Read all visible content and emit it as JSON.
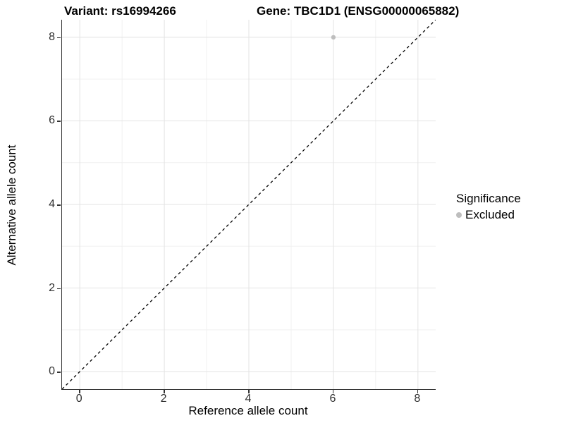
{
  "titles": {
    "variant": "Variant: rs16994266",
    "gene": "Gene: TBC1D1 (ENSG00000065882)"
  },
  "chart_data": {
    "type": "scatter",
    "title": "Variant: rs16994266   Gene: TBC1D1 (ENSG00000065882)",
    "xlabel": "Reference allele count",
    "ylabel": "Alternative allele count",
    "xlim": [
      -0.42,
      8.42
    ],
    "ylim": [
      -0.42,
      8.42
    ],
    "x_ticks": [
      0,
      2,
      4,
      6,
      8
    ],
    "y_ticks": [
      0,
      2,
      4,
      6,
      8
    ],
    "minor_ticks": [
      1,
      3,
      5,
      7
    ],
    "grid": true,
    "points": [
      {
        "x": 6,
        "y": 8,
        "series": "Excluded"
      }
    ],
    "reference_line": {
      "kind": "identity-y-equals-x",
      "style": "dashed",
      "color": "#000000"
    },
    "legend": {
      "title": "Significance",
      "position": "right",
      "entries": [
        {
          "label": "Excluded",
          "color": "#bebebe"
        }
      ]
    }
  },
  "colors": {
    "point": "#bebebe",
    "axis_line": "#333333",
    "tick_label": "#303030",
    "grid_major": "#e3e3e3",
    "grid_minor": "#f0f0f0",
    "dashed_line": "#000000"
  }
}
